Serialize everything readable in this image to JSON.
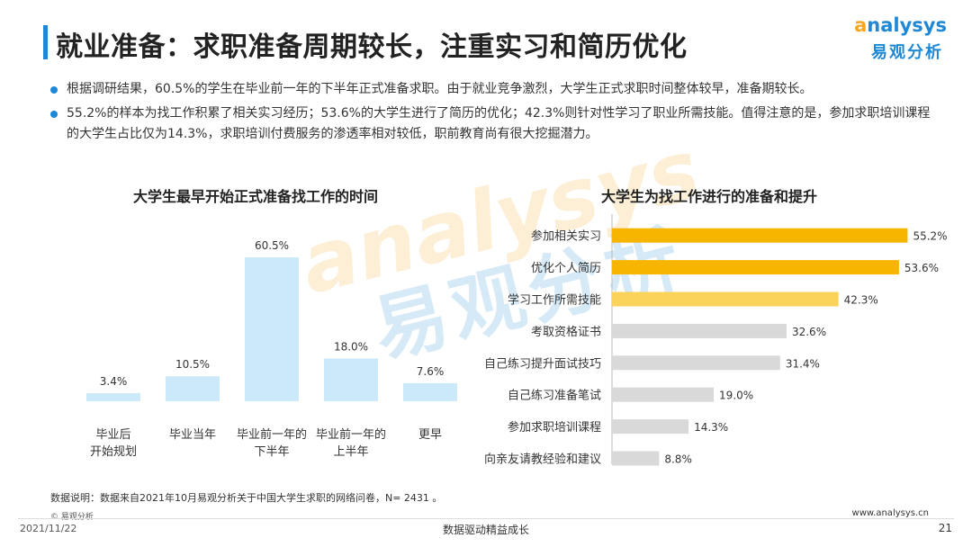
{
  "header": {
    "title": "就业准备：求职准备周期较长，注重实习和简历优化"
  },
  "logo": {
    "en_first": "a",
    "en_rest": "nalysys",
    "cn": "易观分析"
  },
  "watermark": {
    "en": "analysys",
    "cn": "易观分析"
  },
  "bullets": [
    "根据调研结果，60.5%的学生在毕业前一年的下半年正式准备求职。由于就业竞争激烈，大学生正式求职时间整体较早，准备期较长。",
    "55.2%的样本为找工作积累了相关实习经历；53.6%的大学生进行了简历的优化；42.3%则针对性学习了职业所需技能。值得注意的是，参加求职培训课程的大学生占比仅为14.3%，求职培训付费服务的渗透率相对较低，职前教育尚有很大挖掘潜力。"
  ],
  "chart_data": [
    {
      "type": "bar",
      "title": "大学生最早开始正式准备找工作的时间",
      "categories": [
        [
          "毕业后",
          "开始规划"
        ],
        [
          "毕业当年"
        ],
        [
          "毕业前一年的",
          "下半年"
        ],
        [
          "毕业前一年的",
          "上半年"
        ],
        [
          "更早"
        ]
      ],
      "values": [
        3.4,
        10.5,
        60.5,
        18.0,
        7.6
      ],
      "value_labels": [
        "3.4%",
        "10.5%",
        "60.5%",
        "18.0%",
        "7.6%"
      ],
      "unit": "%",
      "color": "#cce9fa",
      "grid": false
    },
    {
      "type": "bar",
      "orientation": "horizontal",
      "title": "大学生为找工作进行的准备和提升",
      "categories": [
        "参加相关实习",
        "优化个人简历",
        "学习工作所需技能",
        "考取资格证书",
        "自己练习提升面试技巧",
        "自己练习准备笔试",
        "参加求职培训课程",
        "向亲友请教经验和建议"
      ],
      "values": [
        55.2,
        53.6,
        42.3,
        32.6,
        31.4,
        19.0,
        14.3,
        8.8
      ],
      "value_labels": [
        "55.2%",
        "53.6%",
        "42.3%",
        "32.6%",
        "31.4%",
        "19.0%",
        "14.3%",
        "8.8%"
      ],
      "unit": "%",
      "colors": [
        "#f7b500",
        "#f7b500",
        "#fbd25a",
        "#d9d9d9",
        "#d9d9d9",
        "#d9d9d9",
        "#d9d9d9",
        "#d9d9d9"
      ],
      "grid": false
    }
  ],
  "footer": {
    "note": "数据说明：数据来自2021年10月易观分析关于中国大学生求职的网络问卷，N= 2431 。",
    "copyright": "© 易观分析",
    "date": "2021/11/22",
    "slogan": "数据驱动精益成长",
    "site": "www.analysys.cn",
    "page": "21"
  }
}
